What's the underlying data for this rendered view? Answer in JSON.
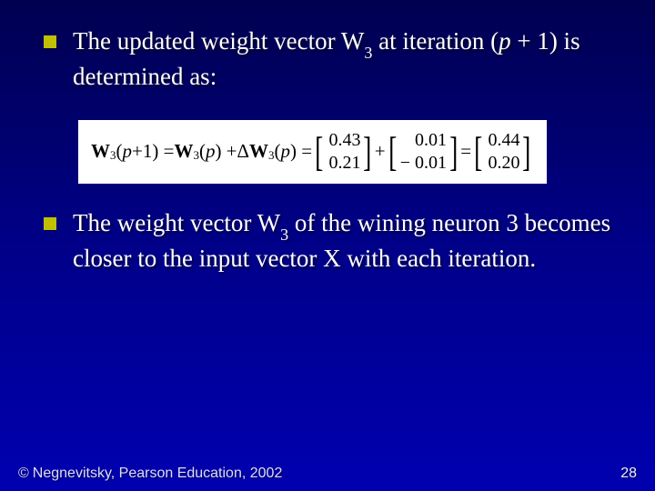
{
  "bullets": {
    "b1_pre": "The updated weight vector W",
    "b1_sub": "3",
    "b1_mid1": " at iteration (",
    "b1_p": "p",
    "b1_mid2": " + 1) is determined as:",
    "b2_pre": "The weight vector W",
    "b2_sub": "3",
    "b2_post": " of the wining neuron 3 becomes closer to the input vector X with each iteration."
  },
  "equation": {
    "lhs_W": "W",
    "lhs_sub": "3",
    "lhs_open": "(",
    "lhs_p": "p",
    "lhs_plus1": " +1) = ",
    "rhs_W": "W",
    "rhs_sub": "3",
    "rhs_open": "(",
    "rhs_p": "p",
    "rhs_close": ") + ",
    "delta": "Δ",
    "dW": "W",
    "dsub": "3",
    "dopen": "(",
    "dp": "p",
    "dclose": ") = ",
    "v1_top": "0.43",
    "v1_bot": "0.21",
    "plus": " + ",
    "v2_top": "0.01",
    "v2_bot": "− 0.01",
    "eq": " = ",
    "v3_top": "0.44",
    "v3_bot": "0.20"
  },
  "footer": {
    "copyright_symbol": "©",
    "copyright_text": "Negnevitsky, Pearson Education, 2002",
    "page_number": "28"
  },
  "style": {
    "bg_gradient_top": "#000050",
    "bg_gradient_bot": "#0000b0",
    "bullet_color": "#c0c000",
    "text_color": "#ffffff",
    "eq_bg": "#ffffff",
    "eq_fg": "#000000",
    "body_fontsize": 27,
    "eq_fontsize": 21,
    "footer_fontsize": 16
  }
}
